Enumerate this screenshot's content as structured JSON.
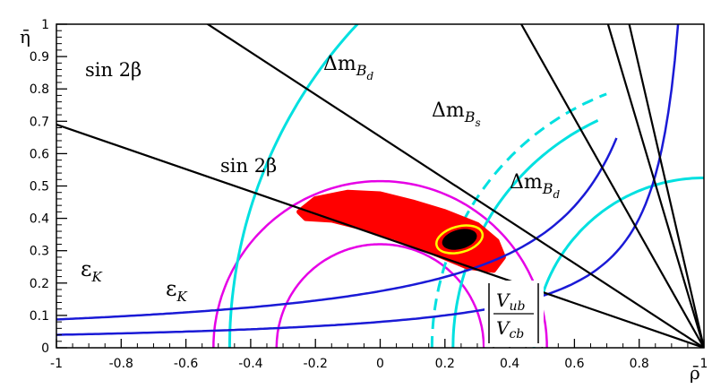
{
  "chart_data": {
    "type": "line",
    "title": "",
    "xlabel": "ρ̄",
    "ylabel": "η̄",
    "xlim": [
      -1,
      1
    ],
    "ylim": [
      0,
      1
    ],
    "x_ticks": [
      -1,
      -0.8,
      -0.6,
      -0.4,
      -0.2,
      0,
      0.2,
      0.4,
      0.6,
      0.8,
      1
    ],
    "x_tick_labels": [
      "-1",
      "-0.8",
      "-0.6",
      "-0.4",
      "-0.2",
      "0",
      "0.2",
      "0.4",
      "0.6",
      "0.8",
      "1"
    ],
    "y_ticks": [
      0,
      0.1,
      0.2,
      0.3,
      0.4,
      0.5,
      0.6,
      0.7,
      0.8,
      0.9,
      1
    ],
    "y_tick_labels": [
      "0",
      "0.1",
      "0.2",
      "0.3",
      "0.4",
      "0.5",
      "0.6",
      "0.7",
      "0.8",
      "0.9",
      "1"
    ],
    "grid": false,
    "colors": {
      "sin2beta": "#000000",
      "eps_K": "#1a1ad6",
      "dm": "#00e0e0",
      "vub": "#e600e6",
      "region": "#ff0000",
      "inner": "#000000",
      "inner_ring": "#ffff00"
    },
    "annotations": {
      "sin2b_upper": "sin 2β",
      "sin2b_lower": "sin 2β",
      "dm_bd_upper": "Δm",
      "dm_bd_upper_sub": "B",
      "dm_bd_upper_subsub": "d",
      "dm_bs": "Δm",
      "dm_bs_sub": "B",
      "dm_bs_subsub": "s",
      "dm_bd_right": "Δm",
      "dm_bd_right_sub": "B",
      "dm_bd_right_subsub": "d",
      "eps_k_upper": "ε",
      "eps_k_upper_sub": "K",
      "eps_k_lower": "ε",
      "eps_k_lower_sub": "K",
      "vub_num": "V",
      "vub_num_sub": "ub",
      "vub_den": "V",
      "vub_den_sub": "cb"
    },
    "sin2beta_lines": [
      {
        "slope": 0.345,
        "role": "lower"
      },
      {
        "slope": 0.6525,
        "role": "upper"
      }
    ],
    "extra_lines_from_apex": [
      {
        "slope": -1.7727
      },
      {
        "slope": -3.375
      },
      {
        "slope": -4.3333
      }
    ],
    "eps_k_hyperbolas": [
      {
        "k": 0.08,
        "rho_max": 0.99
      },
      {
        "k": 0.175,
        "rho_max": 0.735
      }
    ],
    "dm_circles": [
      {
        "radius": 0.775,
        "style": "solid",
        "theta_max": 65
      },
      {
        "radius": 0.84,
        "style": "dashed",
        "theta_max": 69.9
      },
      {
        "radius": 1.465,
        "style": "solid",
        "theta_max": 59
      },
      {
        "radius": 0.525,
        "style": "solid",
        "theta_max": 90
      }
    ],
    "vub_circles": [
      {
        "radius": 0.32
      },
      {
        "radius": 0.515
      }
    ],
    "allowed_region": {
      "outer": [
        [
          -0.25,
          0.42
        ],
        [
          -0.2,
          0.46
        ],
        [
          -0.1,
          0.48
        ],
        [
          0.0,
          0.475
        ],
        [
          0.1,
          0.45
        ],
        [
          0.2,
          0.42
        ],
        [
          0.3,
          0.38
        ],
        [
          0.36,
          0.33
        ],
        [
          0.38,
          0.28
        ],
        [
          0.35,
          0.24
        ],
        [
          0.27,
          0.25
        ],
        [
          0.15,
          0.3
        ],
        [
          0.05,
          0.34
        ],
        [
          -0.05,
          0.37
        ],
        [
          -0.15,
          0.395
        ],
        [
          -0.23,
          0.4
        ]
      ],
      "best_fit": {
        "rho": 0.245,
        "eta": 0.335,
        "r_rho": 0.055,
        "r_eta": 0.03,
        "angle_deg": -15
      },
      "yellow_contour": {
        "rho": 0.245,
        "eta": 0.335,
        "r_rho": 0.073,
        "r_eta": 0.04,
        "angle_deg": -15
      }
    }
  }
}
